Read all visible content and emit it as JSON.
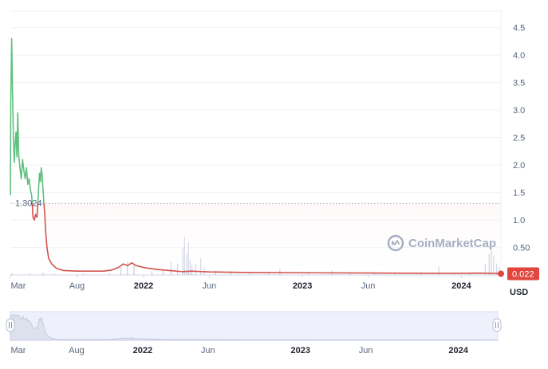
{
  "chart_data": {
    "type": "line",
    "title": "",
    "currency": "USD",
    "watermark": "CoinMarketCap",
    "open_price_label": "1.3024",
    "current_price_label": "0.022",
    "ylim": [
      0,
      4.8
    ],
    "y_ticks": [
      "0.50",
      "1.0",
      "1.5",
      "2.0",
      "2.5",
      "3.0",
      "3.5",
      "4.0",
      "4.5"
    ],
    "y_tick_values": [
      0.5,
      1.0,
      1.5,
      2.0,
      2.5,
      3.0,
      3.5,
      4.0,
      4.5
    ],
    "x_ticks": [
      {
        "label": "Mar",
        "date": "2021-03-01",
        "bold": false
      },
      {
        "label": "Aug",
        "date": "2021-08-01",
        "bold": false
      },
      {
        "label": "2022",
        "date": "2022-01-01",
        "bold": true
      },
      {
        "label": "Jun",
        "date": "2022-06-01",
        "bold": false
      },
      {
        "label": "2023",
        "date": "2023-01-01",
        "bold": true
      },
      {
        "label": "Jun",
        "date": "2023-06-01",
        "bold": false
      },
      {
        "label": "2024",
        "date": "2024-01-01",
        "bold": true
      }
    ],
    "navigator_x_ticks": [
      "Mar",
      "Aug",
      "2022",
      "Jun",
      "2023",
      "Jun",
      "2024"
    ],
    "series": [
      {
        "points": [
          [
            "2021-03-01",
            1.45
          ],
          [
            "2021-03-02",
            3.2
          ],
          [
            "2021-03-04",
            4.3
          ],
          [
            "2021-03-06",
            3.3
          ],
          [
            "2021-03-08",
            2.5
          ],
          [
            "2021-03-10",
            2.05
          ],
          [
            "2021-03-12",
            2.4
          ],
          [
            "2021-03-14",
            2.6
          ],
          [
            "2021-03-16",
            2.15
          ],
          [
            "2021-03-18",
            2.95
          ],
          [
            "2021-03-20",
            2.2
          ],
          [
            "2021-03-23",
            1.95
          ],
          [
            "2021-03-26",
            1.75
          ],
          [
            "2021-03-29",
            2.1
          ],
          [
            "2021-04-01",
            1.9
          ],
          [
            "2021-04-04",
            1.75
          ],
          [
            "2021-04-07",
            1.95
          ],
          [
            "2021-04-10",
            1.65
          ],
          [
            "2021-04-13",
            1.75
          ],
          [
            "2021-04-16",
            1.55
          ],
          [
            "2021-04-19",
            1.45
          ],
          [
            "2021-04-22",
            1.05
          ],
          [
            "2021-04-25",
            1.0
          ],
          [
            "2021-04-28",
            1.1
          ],
          [
            "2021-05-01",
            1.05
          ],
          [
            "2021-05-03",
            1.25
          ],
          [
            "2021-05-05",
            1.6
          ],
          [
            "2021-05-07",
            1.85
          ],
          [
            "2021-05-09",
            1.7
          ],
          [
            "2021-05-11",
            1.95
          ],
          [
            "2021-05-13",
            1.8
          ],
          [
            "2021-05-15",
            1.55
          ],
          [
            "2021-05-17",
            1.3
          ],
          [
            "2021-05-19",
            1.1
          ],
          [
            "2021-05-21",
            0.8
          ],
          [
            "2021-05-24",
            0.5
          ],
          [
            "2021-05-28",
            0.3
          ],
          [
            "2021-06-04",
            0.2
          ],
          [
            "2021-06-15",
            0.12
          ],
          [
            "2021-07-01",
            0.08
          ],
          [
            "2021-08-01",
            0.07
          ],
          [
            "2021-09-01",
            0.07
          ],
          [
            "2021-10-01",
            0.07
          ],
          [
            "2021-10-20",
            0.09
          ],
          [
            "2021-11-05",
            0.14
          ],
          [
            "2021-11-15",
            0.2
          ],
          [
            "2021-11-25",
            0.17
          ],
          [
            "2021-12-05",
            0.22
          ],
          [
            "2021-12-15",
            0.17
          ],
          [
            "2022-01-05",
            0.13
          ],
          [
            "2022-02-01",
            0.1
          ],
          [
            "2022-03-01",
            0.08
          ],
          [
            "2022-04-01",
            0.06
          ],
          [
            "2022-04-20",
            0.07
          ],
          [
            "2022-06-01",
            0.055
          ],
          [
            "2022-09-01",
            0.045
          ],
          [
            "2023-01-01",
            0.04
          ],
          [
            "2023-06-01",
            0.035
          ],
          [
            "2023-10-01",
            0.03
          ],
          [
            "2024-01-01",
            0.03
          ],
          [
            "2024-02-15",
            0.033
          ],
          [
            "2024-03-20",
            0.028
          ],
          [
            "2024-04-01",
            0.022
          ]
        ]
      }
    ],
    "volume": [
      [
        "2021-03-05",
        0.05
      ],
      [
        "2021-04-15",
        0.04
      ],
      [
        "2021-05-15",
        0.06
      ],
      [
        "2021-06-10",
        0.03
      ],
      [
        "2021-08-15",
        0.03
      ],
      [
        "2021-10-15",
        0.05
      ],
      [
        "2021-11-10",
        0.2
      ],
      [
        "2021-11-25",
        0.35
      ],
      [
        "2021-12-10",
        0.25
      ],
      [
        "2022-01-20",
        0.1
      ],
      [
        "2022-02-15",
        0.15
      ],
      [
        "2022-03-05",
        0.35
      ],
      [
        "2022-03-20",
        0.3
      ],
      [
        "2022-04-01",
        0.7
      ],
      [
        "2022-04-05",
        1.0
      ],
      [
        "2022-04-10",
        0.55
      ],
      [
        "2022-04-14",
        0.85
      ],
      [
        "2022-04-18",
        0.4
      ],
      [
        "2022-04-22",
        0.25
      ],
      [
        "2022-05-01",
        0.3
      ],
      [
        "2022-05-12",
        0.45
      ],
      [
        "2022-05-20",
        0.2
      ],
      [
        "2022-06-15",
        0.12
      ],
      [
        "2022-07-20",
        0.1
      ],
      [
        "2022-09-01",
        0.08
      ],
      [
        "2022-10-15",
        0.05
      ],
      [
        "2022-11-10",
        0.15
      ],
      [
        "2023-01-15",
        0.05
      ],
      [
        "2023-03-10",
        0.12
      ],
      [
        "2023-04-20",
        0.05
      ],
      [
        "2023-06-15",
        0.06
      ],
      [
        "2023-08-01",
        0.05
      ],
      [
        "2023-10-01",
        0.07
      ],
      [
        "2023-11-10",
        0.22
      ],
      [
        "2023-12-15",
        0.05
      ],
      [
        "2024-01-20",
        0.06
      ],
      [
        "2024-02-25",
        0.3
      ],
      [
        "2024-03-05",
        0.55
      ],
      [
        "2024-03-10",
        0.75
      ],
      [
        "2024-03-15",
        0.5
      ],
      [
        "2024-03-22",
        0.3
      ],
      [
        "2024-03-28",
        0.2
      ]
    ],
    "colors": {
      "up": "#5ec17f",
      "down": "#d2524d",
      "fill_top": "#f7c9ca",
      "navigator_fill": "#eef0fb",
      "navigator_line": "#bfc6de",
      "grid": "#eff2f5",
      "baseline": "#cfd6e4",
      "badge": "#e1453f"
    },
    "grid": true,
    "date_range": [
      "2021-03-01",
      "2024-04-01"
    ]
  }
}
